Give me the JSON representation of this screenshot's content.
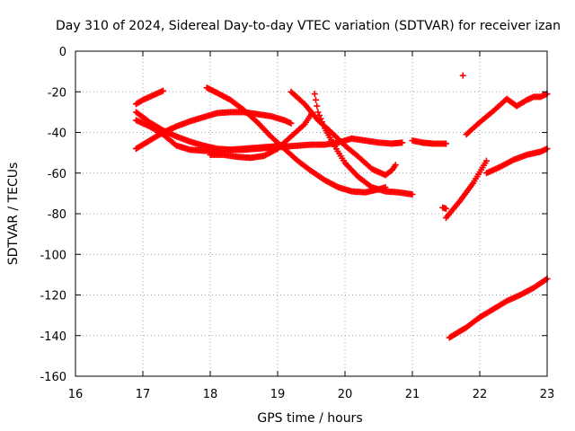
{
  "chart_data": {
    "type": "scatter",
    "title": "Day 310 of 2024, Sidereal Day-to-day VTEC variation (SDTVAR) for receiver izan",
    "xlabel": "GPS time / hours",
    "ylabel": "SDTVAR / TECUs",
    "xlim": [
      16,
      23
    ],
    "ylim": [
      -160,
      0
    ],
    "xticks": [
      16,
      17,
      18,
      19,
      20,
      21,
      22,
      23
    ],
    "yticks": [
      0,
      -20,
      -40,
      -60,
      -80,
      -100,
      -120,
      -140,
      -160
    ],
    "xtick_labels": [
      "16",
      "17",
      "18",
      "19",
      "20",
      "21",
      "22",
      "23"
    ],
    "ytick_labels": [
      "0",
      "-20",
      "-40",
      "-60",
      "-80",
      "-100",
      "-120",
      "-140",
      "-160"
    ],
    "grid": true,
    "marker": "plus",
    "color": "#ff0000",
    "tracks": [
      {
        "points": [
          [
            16.9,
            -26
          ],
          [
            17.0,
            -24
          ],
          [
            17.1,
            -22.5
          ],
          [
            17.2,
            -21
          ],
          [
            17.3,
            -19.5
          ]
        ]
      },
      {
        "points": [
          [
            16.9,
            -48
          ],
          [
            17.1,
            -44
          ],
          [
            17.3,
            -40
          ],
          [
            17.5,
            -37
          ],
          [
            17.7,
            -34.5
          ],
          [
            17.9,
            -32.5
          ],
          [
            18.1,
            -30.5
          ],
          [
            18.3,
            -30
          ],
          [
            18.5,
            -30
          ],
          [
            18.7,
            -31
          ],
          [
            18.9,
            -32
          ],
          [
            19.1,
            -34
          ],
          [
            19.2,
            -35.5
          ]
        ]
      },
      {
        "points": [
          [
            16.9,
            -30
          ],
          [
            17.1,
            -35
          ],
          [
            17.3,
            -39
          ],
          [
            17.5,
            -42
          ],
          [
            17.7,
            -44.5
          ],
          [
            17.9,
            -46.5
          ],
          [
            18.1,
            -48
          ],
          [
            18.3,
            -48.5
          ],
          [
            18.5,
            -48.5
          ],
          [
            18.7,
            -48
          ],
          [
            18.9,
            -47.5
          ],
          [
            19.1,
            -47
          ],
          [
            19.3,
            -46.5
          ],
          [
            19.5,
            -46
          ],
          [
            19.7,
            -46
          ],
          [
            19.9,
            -45
          ],
          [
            20.1,
            -43
          ],
          [
            20.3,
            -44
          ],
          [
            20.5,
            -45
          ],
          [
            20.7,
            -45.5
          ],
          [
            20.85,
            -45
          ]
        ]
      },
      {
        "points": [
          [
            16.9,
            -34
          ],
          [
            17.1,
            -37
          ],
          [
            17.3,
            -41
          ],
          [
            17.5,
            -46.5
          ],
          [
            17.7,
            -48.5
          ],
          [
            17.9,
            -49
          ],
          [
            18.1,
            -49
          ],
          [
            18.3,
            -48.5
          ],
          [
            18.5,
            -48
          ],
          [
            18.7,
            -47.5
          ],
          [
            18.9,
            -47
          ],
          [
            19.1,
            -46.5
          ]
        ]
      },
      {
        "points": [
          [
            17.95,
            -18
          ],
          [
            18.1,
            -20.5
          ],
          [
            18.3,
            -24
          ],
          [
            18.5,
            -29
          ],
          [
            18.7,
            -35
          ],
          [
            18.9,
            -42
          ],
          [
            19.1,
            -48
          ],
          [
            19.3,
            -54
          ],
          [
            19.5,
            -59
          ],
          [
            19.7,
            -63.5
          ],
          [
            19.9,
            -67
          ],
          [
            20.1,
            -69
          ],
          [
            20.3,
            -69.5
          ],
          [
            20.5,
            -68
          ],
          [
            20.6,
            -67
          ]
        ]
      },
      {
        "points": [
          [
            19.2,
            -20
          ],
          [
            19.4,
            -26
          ],
          [
            19.6,
            -34
          ],
          [
            19.8,
            -40
          ],
          [
            20.0,
            -46.5
          ],
          [
            20.2,
            -52
          ],
          [
            20.4,
            -58
          ],
          [
            20.6,
            -61
          ],
          [
            20.7,
            -58.5
          ],
          [
            20.75,
            -56
          ]
        ]
      },
      {
        "points": [
          [
            19.55,
            -21
          ],
          [
            19.6,
            -30
          ],
          [
            19.7,
            -38
          ],
          [
            19.85,
            -47
          ],
          [
            20.0,
            -55
          ],
          [
            20.2,
            -62
          ],
          [
            20.4,
            -67
          ],
          [
            20.6,
            -69
          ],
          [
            20.8,
            -69.5
          ],
          [
            21.0,
            -70.5
          ]
        ]
      },
      {
        "points": [
          [
            18.0,
            -51
          ],
          [
            18.2,
            -51
          ],
          [
            18.4,
            -52
          ],
          [
            18.6,
            -52.5
          ],
          [
            18.8,
            -51.5
          ],
          [
            19.0,
            -48
          ],
          [
            19.2,
            -42
          ],
          [
            19.4,
            -36
          ],
          [
            19.5,
            -31
          ]
        ]
      },
      {
        "points": [
          [
            21.0,
            -44
          ],
          [
            21.15,
            -45
          ],
          [
            21.3,
            -45.5
          ],
          [
            21.5,
            -45.5
          ]
        ]
      },
      {
        "points": [
          [
            21.45,
            -77
          ],
          [
            21.5,
            -77.5
          ]
        ]
      },
      {
        "points": [
          [
            21.75,
            -12
          ]
        ]
      },
      {
        "points": [
          [
            21.5,
            -82
          ],
          [
            21.7,
            -74
          ],
          [
            21.9,
            -65
          ],
          [
            22.1,
            -54
          ]
        ]
      },
      {
        "points": [
          [
            21.8,
            -41
          ],
          [
            22.0,
            -35
          ],
          [
            22.2,
            -29.5
          ],
          [
            22.4,
            -23.5
          ],
          [
            22.55,
            -27
          ],
          [
            22.7,
            -24
          ],
          [
            22.8,
            -22.5
          ],
          [
            22.9,
            -22.5
          ],
          [
            23.0,
            -21
          ]
        ]
      },
      {
        "points": [
          [
            22.1,
            -60
          ],
          [
            22.3,
            -57
          ],
          [
            22.5,
            -53.5
          ],
          [
            22.7,
            -51
          ],
          [
            22.9,
            -49.5
          ],
          [
            23.0,
            -48
          ]
        ]
      },
      {
        "points": [
          [
            21.55,
            -141
          ],
          [
            21.8,
            -136
          ],
          [
            22.0,
            -131
          ],
          [
            22.2,
            -127
          ],
          [
            22.4,
            -123
          ],
          [
            22.6,
            -120
          ],
          [
            22.8,
            -116.5
          ],
          [
            23.0,
            -112
          ]
        ]
      }
    ]
  }
}
